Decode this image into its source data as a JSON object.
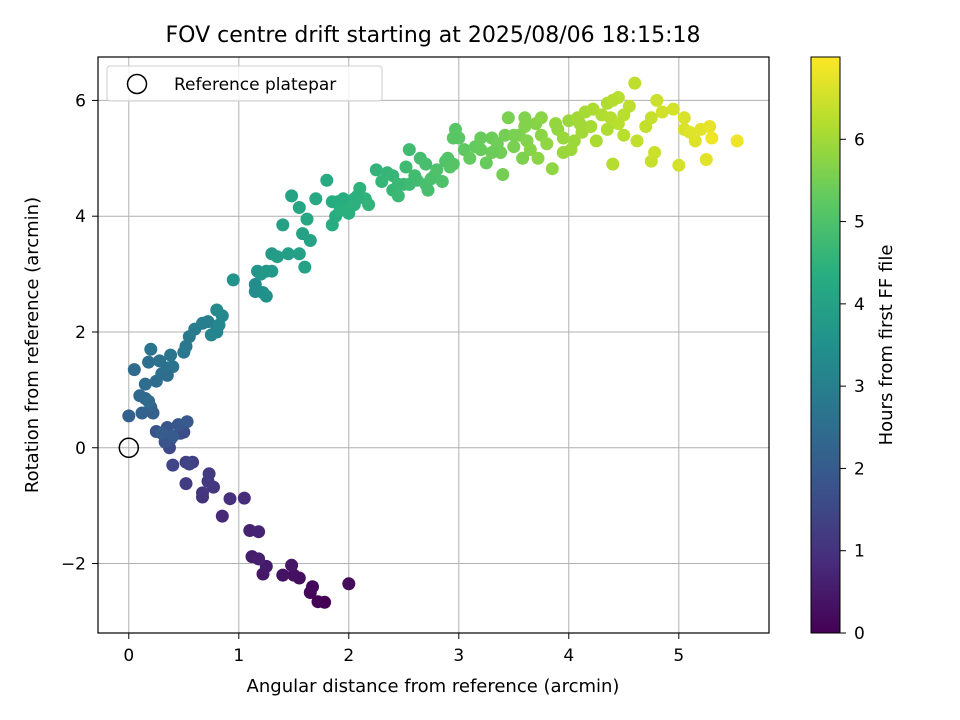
{
  "chart_data": {
    "type": "scatter",
    "title": "FOV centre drift starting at 2025/08/06 18:15:18",
    "xlabel": "Angular distance from reference (arcmin)",
    "ylabel": "Rotation from reference (arcmin)",
    "xlim": [
      -0.28,
      5.82
    ],
    "ylim": [
      -3.2,
      6.75
    ],
    "xticks": [
      0,
      1,
      2,
      3,
      4,
      5
    ],
    "xtick_labels": [
      "0",
      "1",
      "2",
      "3",
      "4",
      "5"
    ],
    "yticks": [
      -2,
      0,
      2,
      4,
      6
    ],
    "ytick_labels": [
      "−2",
      "0",
      "2",
      "4",
      "6"
    ],
    "grid": true,
    "legend": {
      "placement": "upper-left",
      "entries": [
        "Reference platepar"
      ]
    },
    "colorbar": {
      "label": "Hours from first FF file",
      "range": [
        0,
        7.0
      ],
      "ticks": [
        0,
        1,
        2,
        3,
        4,
        5,
        6
      ],
      "tick_labels": [
        "0",
        "1",
        "2",
        "3",
        "4",
        "5",
        "6"
      ],
      "colormap": "viridis"
    },
    "reference_point": {
      "x": 0,
      "y": 0,
      "label": "Reference platepar"
    },
    "series": [
      {
        "points": [
          [
            1.78,
            -2.67,
            0.0
          ],
          [
            1.72,
            -2.66,
            0.05
          ],
          [
            1.65,
            -2.5,
            0.1
          ],
          [
            1.67,
            -2.4,
            0.15
          ],
          [
            2.0,
            -2.35,
            0.2
          ],
          [
            1.55,
            -2.25,
            0.25
          ],
          [
            1.5,
            -2.2,
            0.3
          ],
          [
            1.4,
            -2.2,
            0.35
          ],
          [
            1.48,
            -2.03,
            0.4
          ],
          [
            1.22,
            -2.18,
            0.45
          ],
          [
            1.25,
            -2.05,
            0.5
          ],
          [
            1.12,
            -1.88,
            0.55
          ],
          [
            1.18,
            -1.92,
            0.6
          ],
          [
            1.1,
            -1.43,
            0.65
          ],
          [
            1.18,
            -1.45,
            0.7
          ],
          [
            0.85,
            -1.18,
            0.8
          ],
          [
            1.05,
            -0.87,
            0.9
          ],
          [
            0.92,
            -0.88,
            0.95
          ],
          [
            0.67,
            -0.85,
            1.0
          ],
          [
            0.67,
            -0.78,
            1.05
          ],
          [
            0.77,
            -0.68,
            1.1
          ],
          [
            0.72,
            -0.58,
            1.15
          ],
          [
            0.73,
            -0.45,
            1.2
          ],
          [
            0.52,
            -0.62,
            1.25
          ],
          [
            0.58,
            -0.25,
            1.3
          ],
          [
            0.52,
            -0.25,
            1.35
          ],
          [
            0.55,
            -0.28,
            1.4
          ],
          [
            0.4,
            -0.3,
            1.45
          ],
          [
            0.37,
            0.0,
            1.55
          ],
          [
            0.47,
            0.25,
            1.6
          ],
          [
            0.5,
            0.27,
            1.65
          ],
          [
            0.38,
            0.15,
            1.7
          ],
          [
            0.33,
            0.1,
            1.75
          ],
          [
            0.25,
            0.28,
            1.8
          ],
          [
            0.35,
            0.35,
            1.85
          ],
          [
            0.45,
            0.4,
            1.9
          ],
          [
            0.53,
            0.45,
            1.95
          ],
          [
            0.4,
            0.2,
            2.0
          ],
          [
            0.3,
            0.25,
            2.05
          ],
          [
            0.22,
            0.6,
            2.1
          ],
          [
            0.0,
            0.55,
            2.15
          ],
          [
            0.12,
            0.6,
            2.2
          ],
          [
            0.2,
            0.7,
            2.25
          ],
          [
            0.15,
            0.85,
            2.3
          ],
          [
            0.1,
            0.9,
            2.35
          ],
          [
            0.18,
            0.8,
            2.4
          ],
          [
            0.15,
            1.1,
            2.45
          ],
          [
            0.25,
            1.15,
            2.5
          ],
          [
            0.3,
            1.28,
            2.55
          ],
          [
            0.35,
            1.38,
            2.6
          ],
          [
            0.4,
            1.4,
            2.65
          ],
          [
            0.38,
            1.6,
            2.7
          ],
          [
            0.5,
            1.65,
            2.75
          ],
          [
            0.52,
            1.75,
            2.8
          ],
          [
            0.55,
            1.92,
            2.85
          ],
          [
            0.6,
            2.05,
            2.9
          ],
          [
            0.67,
            2.15,
            2.95
          ],
          [
            0.72,
            2.18,
            3.0
          ],
          [
            0.8,
            2.1,
            3.05
          ],
          [
            0.8,
            2.0,
            3.1
          ],
          [
            0.75,
            1.95,
            3.15
          ],
          [
            0.82,
            2.12,
            3.2
          ],
          [
            0.85,
            2.28,
            3.25
          ],
          [
            0.8,
            2.38,
            3.3
          ],
          [
            0.18,
            1.48,
            2.55
          ],
          [
            0.2,
            1.7,
            2.65
          ],
          [
            0.05,
            1.35,
            2.4
          ],
          [
            0.28,
            1.5,
            2.6
          ],
          [
            0.35,
            1.25,
            2.5
          ],
          [
            1.15,
            2.7,
            3.35
          ],
          [
            1.15,
            2.82,
            3.4
          ],
          [
            1.22,
            2.68,
            3.45
          ],
          [
            1.25,
            2.62,
            3.5
          ],
          [
            0.95,
            2.9,
            3.55
          ],
          [
            1.17,
            3.05,
            3.6
          ],
          [
            1.2,
            3.0,
            3.65
          ],
          [
            1.25,
            3.05,
            3.7
          ],
          [
            1.3,
            3.05,
            3.75
          ],
          [
            1.3,
            3.35,
            3.8
          ],
          [
            1.35,
            3.3,
            3.85
          ],
          [
            1.45,
            3.35,
            3.9
          ],
          [
            1.55,
            3.35,
            3.95
          ],
          [
            1.6,
            3.12,
            4.0
          ],
          [
            1.4,
            3.85,
            3.95
          ],
          [
            1.48,
            4.35,
            4.05
          ],
          [
            1.55,
            4.15,
            4.1
          ],
          [
            1.62,
            3.95,
            4.15
          ],
          [
            1.7,
            4.3,
            4.2
          ],
          [
            1.65,
            3.58,
            4.05
          ],
          [
            1.58,
            3.7,
            4.0
          ],
          [
            1.8,
            4.62,
            4.25
          ],
          [
            1.85,
            4.25,
            4.3
          ],
          [
            1.9,
            4.25,
            4.35
          ],
          [
            1.88,
            4.0,
            4.35
          ],
          [
            1.92,
            4.1,
            4.4
          ],
          [
            1.95,
            4.2,
            4.4
          ],
          [
            2.0,
            4.1,
            4.45
          ],
          [
            2.05,
            4.3,
            4.45
          ],
          [
            2.1,
            4.48,
            4.5
          ],
          [
            2.15,
            4.3,
            4.5
          ],
          [
            2.18,
            4.2,
            4.55
          ],
          [
            1.85,
            3.85,
            4.3
          ],
          [
            1.95,
            4.3,
            4.35
          ],
          [
            2.05,
            4.2,
            4.45
          ],
          [
            2.25,
            4.8,
            4.55
          ],
          [
            2.3,
            4.6,
            4.6
          ],
          [
            2.35,
            4.75,
            4.6
          ],
          [
            2.4,
            4.7,
            4.65
          ],
          [
            2.4,
            4.45,
            4.65
          ],
          [
            2.45,
            4.35,
            4.7
          ],
          [
            2.5,
            4.55,
            4.7
          ],
          [
            2.52,
            4.85,
            4.75
          ],
          [
            2.55,
            4.55,
            4.75
          ],
          [
            2.6,
            4.7,
            4.8
          ],
          [
            2.62,
            4.62,
            4.8
          ],
          [
            2.65,
            5.0,
            4.85
          ],
          [
            2.7,
            4.55,
            4.9
          ],
          [
            2.72,
            4.45,
            4.9
          ],
          [
            2.75,
            4.65,
            4.95
          ],
          [
            2.78,
            4.7,
            4.95
          ],
          [
            2.8,
            4.8,
            5.0
          ],
          [
            2.85,
            4.6,
            5.0
          ],
          [
            2.88,
            4.95,
            5.05
          ],
          [
            2.9,
            5.0,
            5.05
          ],
          [
            2.92,
            4.85,
            5.1
          ],
          [
            2.95,
            4.9,
            5.1
          ],
          [
            2.97,
            5.5,
            5.15
          ],
          [
            2.55,
            5.15,
            4.8
          ],
          [
            2.45,
            4.55,
            4.7
          ],
          [
            2.7,
            4.9,
            4.9
          ],
          [
            3.0,
            5.35,
            5.2
          ],
          [
            3.05,
            5.15,
            5.25
          ],
          [
            3.1,
            5.0,
            5.3
          ],
          [
            3.15,
            5.2,
            5.3
          ],
          [
            3.2,
            5.35,
            5.35
          ],
          [
            3.25,
            4.92,
            5.35
          ],
          [
            3.3,
            5.35,
            5.4
          ],
          [
            3.35,
            5.25,
            5.45
          ],
          [
            3.38,
            5.1,
            5.45
          ],
          [
            3.4,
            4.72,
            5.5
          ],
          [
            3.42,
            5.4,
            5.5
          ],
          [
            3.45,
            5.7,
            5.55
          ],
          [
            3.5,
            5.2,
            5.55
          ],
          [
            3.55,
            5.4,
            5.6
          ],
          [
            3.58,
            5.0,
            5.6
          ],
          [
            3.6,
            5.7,
            5.65
          ],
          [
            3.62,
            5.3,
            5.65
          ],
          [
            3.65,
            5.15,
            5.7
          ],
          [
            3.7,
            5.6,
            5.7
          ],
          [
            3.72,
            5.0,
            5.75
          ],
          [
            3.75,
            5.4,
            5.75
          ],
          [
            3.8,
            5.25,
            5.8
          ],
          [
            3.85,
            4.82,
            5.8
          ],
          [
            3.88,
            5.6,
            5.85
          ],
          [
            3.9,
            5.5,
            5.85
          ],
          [
            3.95,
            5.35,
            5.9
          ],
          [
            4.0,
            5.65,
            5.9
          ],
          [
            4.02,
            5.15,
            5.95
          ],
          [
            4.05,
            5.3,
            5.95
          ],
          [
            4.08,
            5.7,
            6.0
          ],
          [
            4.12,
            5.45,
            6.0
          ],
          [
            4.15,
            5.8,
            6.05
          ],
          [
            4.2,
            5.55,
            6.05
          ],
          [
            4.22,
            5.85,
            6.1
          ],
          [
            4.25,
            5.3,
            6.1
          ],
          [
            4.3,
            5.75,
            6.15
          ],
          [
            4.35,
            5.5,
            6.15
          ],
          [
            4.38,
            5.7,
            6.2
          ],
          [
            4.4,
            4.9,
            6.2
          ],
          [
            4.45,
            6.05,
            6.25
          ],
          [
            4.5,
            5.4,
            6.25
          ],
          [
            4.55,
            5.9,
            6.3
          ],
          [
            4.6,
            6.3,
            6.3
          ],
          [
            4.62,
            5.3,
            6.35
          ],
          [
            4.7,
            5.55,
            6.35
          ],
          [
            4.75,
            5.7,
            6.4
          ],
          [
            4.75,
            4.95,
            6.4
          ],
          [
            4.8,
            6.0,
            6.45
          ],
          [
            4.78,
            5.1,
            6.45
          ],
          [
            4.85,
            5.8,
            6.5
          ],
          [
            4.95,
            5.85,
            6.55
          ],
          [
            5.0,
            4.88,
            6.55
          ],
          [
            5.05,
            5.7,
            6.6
          ],
          [
            5.05,
            5.5,
            6.6
          ],
          [
            5.1,
            5.45,
            6.65
          ],
          [
            5.15,
            5.3,
            6.65
          ],
          [
            5.2,
            5.5,
            6.7
          ],
          [
            5.25,
            4.98,
            6.7
          ],
          [
            5.28,
            5.55,
            6.75
          ],
          [
            5.3,
            5.35,
            6.85
          ],
          [
            5.53,
            5.3,
            6.85
          ],
          [
            4.45,
            5.6,
            6.25
          ],
          [
            3.95,
            5.1,
            5.9
          ],
          [
            3.6,
            5.55,
            5.65
          ],
          [
            3.3,
            5.1,
            5.4
          ],
          [
            3.75,
            5.7,
            5.75
          ],
          [
            4.1,
            5.6,
            6.0
          ],
          [
            4.35,
            5.95,
            6.15
          ],
          [
            4.5,
            5.75,
            6.25
          ],
          [
            4.4,
            6.0,
            6.2
          ],
          [
            2.95,
            5.35,
            5.15
          ],
          [
            3.2,
            5.15,
            5.35
          ],
          [
            3.5,
            5.4,
            5.55
          ],
          [
            2.0,
            4.05,
            4.4
          ],
          [
            2.08,
            4.35,
            4.45
          ]
        ]
      }
    ]
  }
}
